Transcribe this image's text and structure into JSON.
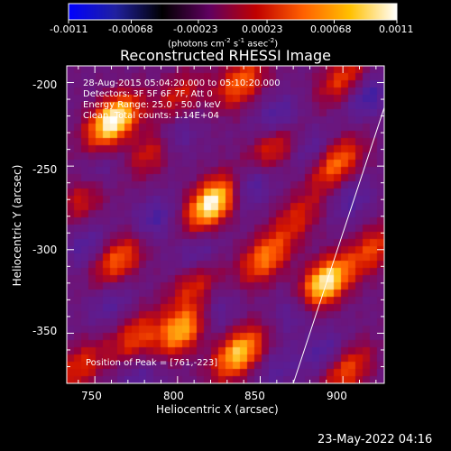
{
  "colorbar": {
    "tick_labels": [
      "-0.0011",
      "-0.00068",
      "-0.00023",
      "0.00023",
      "0.00068",
      "0.0011"
    ],
    "tick_values": [
      -0.0011,
      -0.00068,
      -0.00023,
      0.00023,
      0.00068,
      0.0011
    ],
    "range": [
      -0.0011,
      0.0011
    ],
    "units_prefix": "(photons cm",
    "units_exp1": "-2",
    "units_mid1": " s",
    "units_exp2": "-1",
    "units_mid2": " asec",
    "units_exp3": "-2",
    "units_suffix": ")",
    "colors": [
      "#0000ff",
      "#2020a0",
      "#000000",
      "#600060",
      "#c00000",
      "#ff6000",
      "#ffc000",
      "#ffffff"
    ]
  },
  "chart_data": {
    "type": "heatmap",
    "title": "Reconstructed RHESSI Image",
    "xlabel": "Heliocentric X (arcsec)",
    "ylabel": "Heliocentric Y (arcsec)",
    "xlim": [
      733,
      925
    ],
    "ylim": [
      -380,
      -190
    ],
    "x_ticks": [
      750,
      800,
      850,
      900
    ],
    "x_tick_labels": [
      "750",
      "800",
      "850",
      "900"
    ],
    "y_ticks": [
      -200,
      -250,
      -300,
      -350
    ],
    "y_tick_labels": [
      "-200",
      "-250",
      "-300",
      "-350"
    ],
    "annotations": [
      "28-Aug-2015 05:04:20.000 to 05:10:20.000",
      "Detectors: 3F 5F 6F 7F, Att 0",
      "Energy Range: 25.0 - 50.0 keV",
      "Clean. Total counts: 1.14E+04"
    ],
    "peak_label": "Position of Peak = [761,-223]",
    "peak_position": [
      761,
      -223
    ],
    "sources": [
      {
        "x": 761,
        "y": -223,
        "amp": 1.0
      },
      {
        "x": 821,
        "y": -272,
        "amp": 1.0
      },
      {
        "x": 803,
        "y": -348,
        "amp": 0.75
      },
      {
        "x": 853,
        "y": -305,
        "amp": 0.6
      },
      {
        "x": 889,
        "y": -320,
        "amp": 0.95
      },
      {
        "x": 837,
        "y": -362,
        "amp": 0.8
      },
      {
        "x": 838,
        "y": -200,
        "amp": 0.55
      },
      {
        "x": 896,
        "y": -248,
        "amp": 0.6
      },
      {
        "x": 764,
        "y": -306,
        "amp": 0.55
      },
      {
        "x": 900,
        "y": -198,
        "amp": 0.45
      },
      {
        "x": 786,
        "y": -240,
        "amp": 0.45
      },
      {
        "x": 858,
        "y": -238,
        "amp": 0.45
      },
      {
        "x": 744,
        "y": -268,
        "amp": 0.4
      },
      {
        "x": 775,
        "y": -352,
        "amp": 0.45
      },
      {
        "x": 741,
        "y": -370,
        "amp": 0.4
      },
      {
        "x": 918,
        "y": -300,
        "amp": 0.45
      },
      {
        "x": 902,
        "y": -372,
        "amp": 0.5
      },
      {
        "x": 801,
        "y": -208,
        "amp": 0.35
      },
      {
        "x": 810,
        "y": -320,
        "amp": 0.4
      },
      {
        "x": 873,
        "y": -280,
        "amp": 0.35
      }
    ],
    "dips": [
      {
        "x": 797,
        "y": -232,
        "amp": 0.75
      },
      {
        "x": 861,
        "y": -222,
        "amp": 0.7
      },
      {
        "x": 915,
        "y": -208,
        "amp": 0.7
      },
      {
        "x": 752,
        "y": -256,
        "amp": 0.55
      },
      {
        "x": 745,
        "y": -298,
        "amp": 0.5
      },
      {
        "x": 786,
        "y": -282,
        "amp": 0.6
      },
      {
        "x": 843,
        "y": -262,
        "amp": 0.7
      },
      {
        "x": 882,
        "y": -240,
        "amp": 0.5
      },
      {
        "x": 812,
        "y": -304,
        "amp": 0.55
      },
      {
        "x": 872,
        "y": -336,
        "amp": 0.55
      },
      {
        "x": 905,
        "y": -270,
        "amp": 0.5
      },
      {
        "x": 759,
        "y": -332,
        "amp": 0.45
      },
      {
        "x": 822,
        "y": -338,
        "amp": 0.5
      },
      {
        "x": 889,
        "y": -362,
        "amp": 0.55
      },
      {
        "x": 777,
        "y": -377,
        "amp": 0.45
      },
      {
        "x": 860,
        "y": -372,
        "amp": 0.4
      }
    ],
    "limb_line": {
      "x": [
        870,
        925
      ],
      "y": [
        -380,
        -215
      ]
    }
  },
  "footer": {
    "timestamp": "23-May-2022 04:16"
  }
}
